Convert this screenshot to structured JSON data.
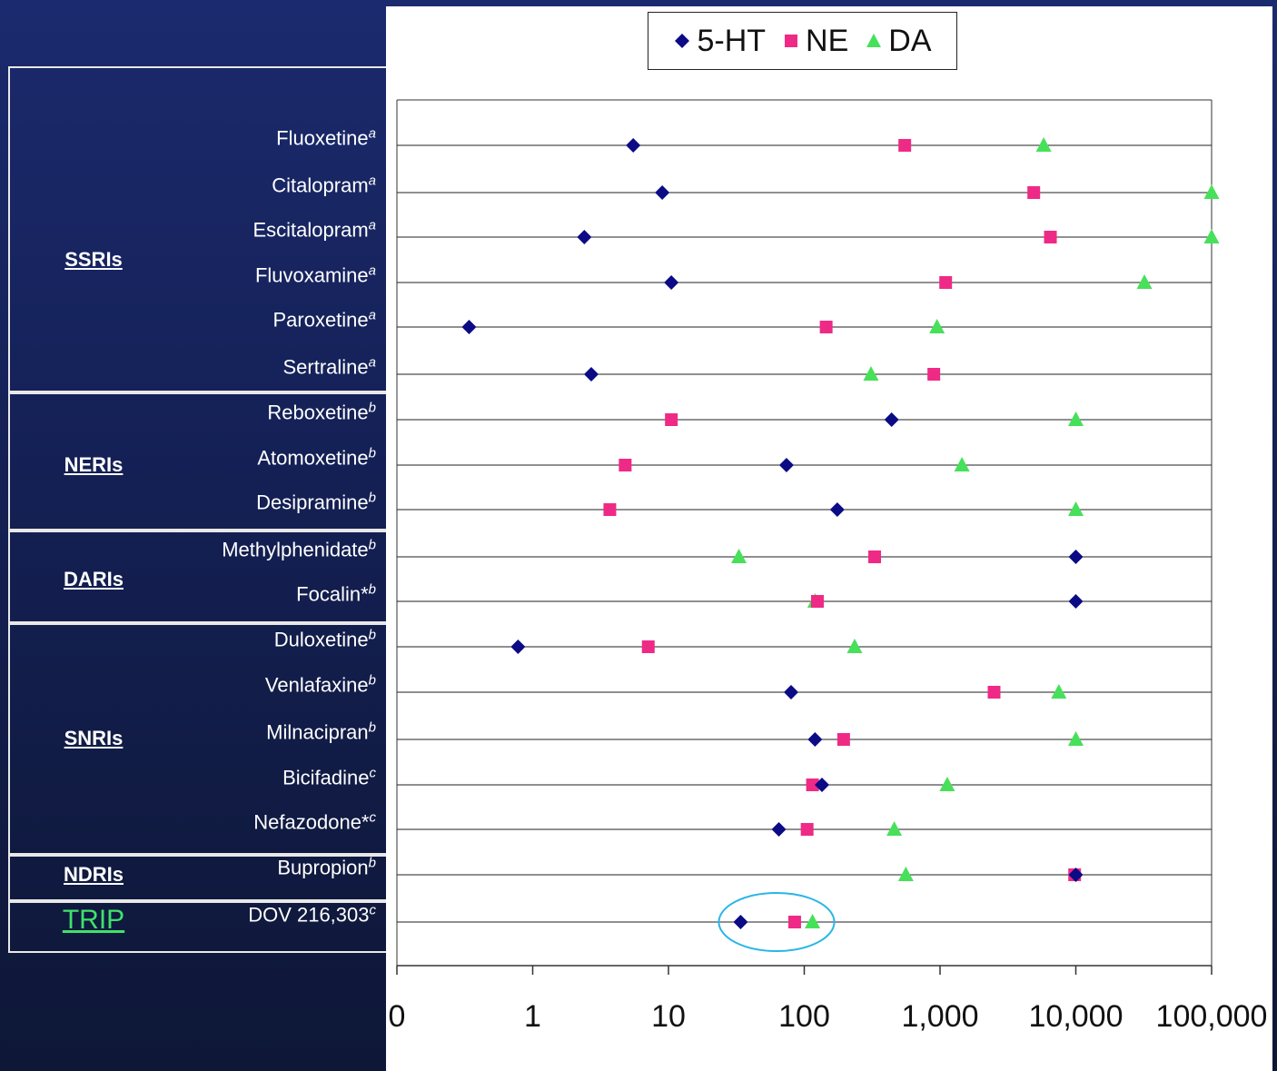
{
  "chart_data": {
    "type": "scatter",
    "x_scale": "log",
    "legend": [
      "5-HT",
      "NE",
      "DA"
    ],
    "legend_position": "top",
    "colors": {
      "5-HT": "#0b0b86",
      "NE": "#ef2a86",
      "DA": "#47e05a"
    },
    "x_tick_labels": [
      "0",
      "1",
      "10",
      "100",
      "1,000",
      "10,000",
      "100,000"
    ],
    "drugs": [
      {
        "name": "Fluoxetine",
        "sup": "a",
        "5-HT": 5.5,
        "NE": 550,
        "DA": 5800
      },
      {
        "name": "Citalopram",
        "sup": "a",
        "5-HT": 9,
        "NE": 4900,
        "DA": 100000
      },
      {
        "name": "Escitalopram",
        "sup": "a",
        "5-HT": 2.4,
        "NE": 6500,
        "DA": 100000
      },
      {
        "name": "Fluvoxamine",
        "sup": "a",
        "5-HT": 10.5,
        "NE": 1100,
        "DA": 32000
      },
      {
        "name": "Paroxetine",
        "sup": "a",
        "5-HT": 0.34,
        "NE": 145,
        "DA": 950
      },
      {
        "name": "Sertraline",
        "sup": "a",
        "5-HT": 2.7,
        "NE": 900,
        "DA": 310
      },
      {
        "name": "Reboxetine",
        "sup": "b",
        "5-HT": 440,
        "NE": 10.5,
        "DA": 10000
      },
      {
        "name": "Atomoxetine",
        "sup": "b",
        "5-HT": 74,
        "NE": 4.8,
        "DA": 1450
      },
      {
        "name": "Desipramine",
        "sup": "b",
        "5-HT": 175,
        "NE": 3.7,
        "DA": 10000
      },
      {
        "name": "Methylphenidate",
        "sup": "b",
        "5-HT": 10000,
        "NE": 330,
        "DA": 33
      },
      {
        "name": "Focalin*",
        "sup": "b",
        "5-HT": 10000,
        "NE": 125,
        "DA": 120
      },
      {
        "name": "Duloxetine",
        "sup": "b",
        "5-HT": 0.78,
        "NE": 7.1,
        "DA": 235
      },
      {
        "name": "Venlafaxine",
        "sup": "b",
        "5-HT": 80,
        "NE": 2500,
        "DA": 7500
      },
      {
        "name": "Milnacipran",
        "sup": "b",
        "5-HT": 120,
        "NE": 195,
        "DA": 10000
      },
      {
        "name": "Bicifadine",
        "sup": "c",
        "5-HT": 135,
        "NE": 115,
        "DA": 1130
      },
      {
        "name": "Nefazodone*",
        "sup": "c",
        "5-HT": 65,
        "NE": 105,
        "DA": 460
      },
      {
        "name": "Bupropion",
        "sup": "b",
        "5-HT": 10000,
        "NE": 9800,
        "DA": 560
      },
      {
        "name": "DOV 216,303",
        "sup": "c",
        "5-HT": 34,
        "NE": 85,
        "DA": 115
      }
    ]
  },
  "groups": [
    {
      "label": "SSRIs",
      "first": 0,
      "last": 5
    },
    {
      "label": "NERIs",
      "first": 6,
      "last": 8
    },
    {
      "label": "DARIs",
      "first": 9,
      "last": 10
    },
    {
      "label": "SNRIs",
      "first": 11,
      "last": 15
    },
    {
      "label": "NDRIs",
      "first": 16,
      "last": 16
    },
    {
      "label": "TRIP",
      "first": 17,
      "last": 17,
      "highlight": true
    }
  ]
}
